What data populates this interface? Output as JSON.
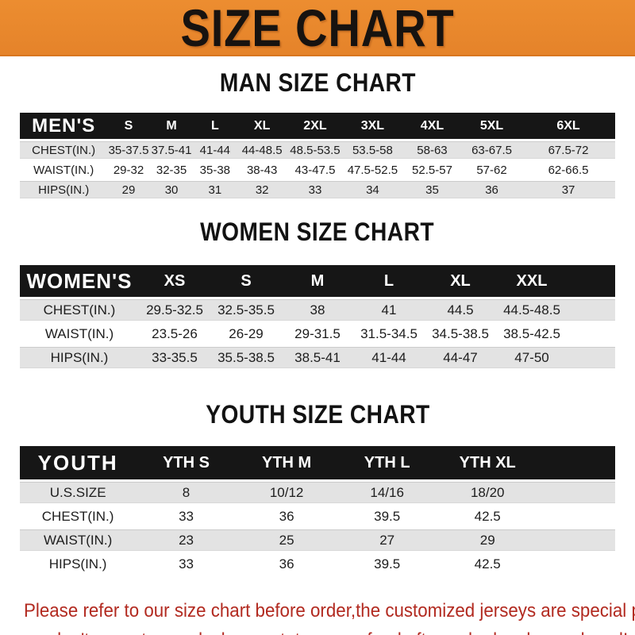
{
  "banner": {
    "title": "SIZE CHART"
  },
  "sections": {
    "men": {
      "heading": "MAN SIZE CHART",
      "table": {
        "header_label": "MEN'S",
        "columns": [
          "S",
          "M",
          "L",
          "XL",
          "2XL",
          "3XL",
          "4XL",
          "5XL",
          "6XL"
        ],
        "rows": [
          {
            "label": "CHEST(IN.)",
            "values": [
              "35-37.5",
              "37.5-41",
              "41-44",
              "44-48.5",
              "48.5-53.5",
              "53.5-58",
              "58-63",
              "63-67.5",
              "67.5-72"
            ]
          },
          {
            "label": "WAIST(IN.)",
            "values": [
              "29-32",
              "32-35",
              "35-38",
              "38-43",
              "43-47.5",
              "47.5-52.5",
              "52.5-57",
              "57-62",
              "62-66.5"
            ]
          },
          {
            "label": "HIPS(IN.)",
            "values": [
              "29",
              "30",
              "31",
              "32",
              "33",
              "34",
              "35",
              "36",
              "37"
            ]
          }
        ]
      }
    },
    "women": {
      "heading": "WOMEN SIZE CHART",
      "table": {
        "header_label": "WOMEN'S",
        "columns": [
          "XS",
          "S",
          "M",
          "L",
          "XL",
          "XXL"
        ],
        "rows": [
          {
            "label": "CHEST(IN.)",
            "values": [
              "29.5-32.5",
              "32.5-35.5",
              "38",
              "41",
              "44.5",
              "44.5-48.5"
            ]
          },
          {
            "label": "WAIST(IN.)",
            "values": [
              "23.5-26",
              "26-29",
              "29-31.5",
              "31.5-34.5",
              "34.5-38.5",
              "38.5-42.5"
            ]
          },
          {
            "label": "HIPS(IN.)",
            "values": [
              "33-35.5",
              "35.5-38.5",
              "38.5-41",
              "41-44",
              "44-47",
              "47-50"
            ]
          }
        ]
      }
    },
    "youth": {
      "heading": "YOUTH SIZE CHART",
      "table": {
        "header_label": "YOUTH",
        "columns": [
          "YTH S",
          "YTH M",
          "YTH L",
          "YTH XL"
        ],
        "rows": [
          {
            "label": "U.S.SIZE",
            "values": [
              "8",
              "10/12",
              "14/16",
              "18/20"
            ]
          },
          {
            "label": "CHEST(IN.)",
            "values": [
              "33",
              "36",
              "39.5",
              "42.5"
            ]
          },
          {
            "label": "WAIST(IN.)",
            "values": [
              "23",
              "25",
              "27",
              "29"
            ]
          },
          {
            "label": "HIPS(IN.)",
            "values": [
              "33",
              "36",
              "39.5",
              "42.5"
            ]
          }
        ]
      }
    }
  },
  "footer": {
    "line1": "Please refer to our size chart before order,the customized jerseys are special products,",
    "line2": "we don't accept cancel, change, teturn or refund after order has been placed!"
  },
  "colors": {
    "banner_orange": "#e8872b",
    "table_header_black": "#161616",
    "row_stripe_gray": "#e3e3e3",
    "footer_red": "#b22a20"
  }
}
